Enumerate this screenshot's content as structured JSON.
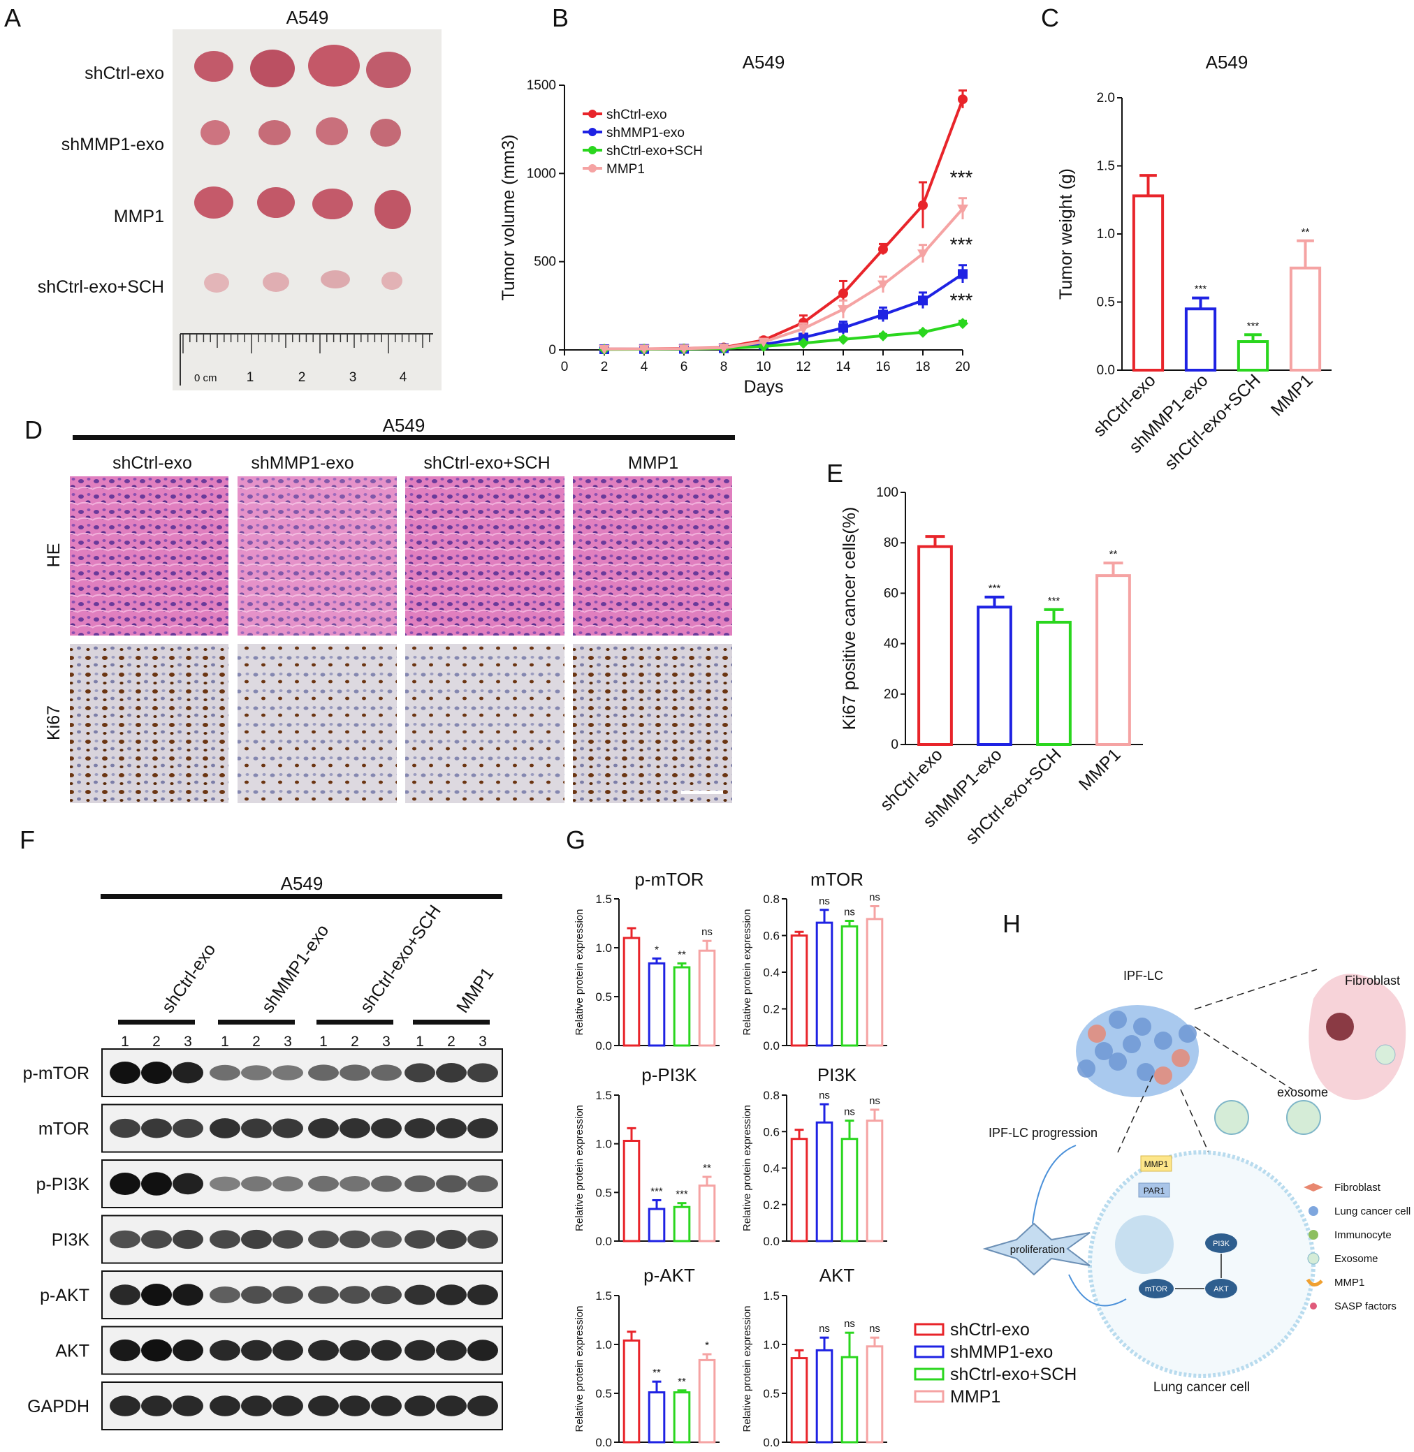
{
  "colors": {
    "red": "#e8242a",
    "blue": "#1e22e3",
    "green": "#2ad61e",
    "pink": "#f5a3a3"
  },
  "panels": {
    "A": "A",
    "B": "B",
    "C": "C",
    "D": "D",
    "E": "E",
    "F": "F",
    "G": "G",
    "H": "H"
  },
  "panelA": {
    "title": "A549",
    "rows": [
      "shCtrl-exo",
      "shMMP1-exo",
      "MMP1",
      "shCtrl-exo+SCH"
    ],
    "ruler": {
      "unit": "0 cm",
      "ticks": [
        "1",
        "2",
        "3",
        "4"
      ]
    }
  },
  "panelD": {
    "title": "A549",
    "columns": [
      "shCtrl-exo",
      "shMMP1-exo",
      "shCtrl-exo+SCH",
      "MMP1"
    ],
    "rows": [
      "HE",
      "Ki67"
    ]
  },
  "panelF": {
    "title": "A549",
    "groups": [
      "shCtrl-exo",
      "shMMP1-exo",
      "shCtrl-exo+SCH",
      "MMP1"
    ],
    "lanes": [
      "1",
      "2",
      "3"
    ],
    "bands": [
      "p-mTOR",
      "mTOR",
      "p-PI3K",
      "PI3K",
      "p-AKT",
      "AKT",
      "GAPDH"
    ]
  },
  "panelH": {
    "ipf": "IPF-LC",
    "fibroblast": "Fibroblast",
    "exosome": "exosome",
    "progression": "IPF-LC progression",
    "proliferation": "proliferation",
    "cell": "Lung cancer cell",
    "mmp1": "MMP1",
    "par1": "PAR1",
    "pi3k": "PI3K",
    "akt": "AKT",
    "mtor": "mTOR",
    "legend": [
      "Fibroblast",
      "Lung cancer cell",
      "Immunocyte",
      "Exosome",
      "MMP1",
      "SASP factors"
    ]
  },
  "chart_data": [
    {
      "id": "B",
      "type": "line",
      "title": "A549",
      "xlabel": "Days",
      "ylabel": "Tumor volume (mm3)",
      "xlim": [
        0,
        20
      ],
      "ylim": [
        0,
        1500
      ],
      "xticks": [
        "0",
        "2",
        "4",
        "6",
        "8",
        "10",
        "12",
        "14",
        "16",
        "18",
        "20"
      ],
      "yticks": [
        "0",
        "500",
        "1000",
        "1500"
      ],
      "x": [
        2,
        4,
        6,
        8,
        10,
        12,
        14,
        16,
        18,
        20
      ],
      "series": [
        {
          "name": "shCtrl-exo",
          "color": "#e8242a",
          "marker": "circle",
          "values": [
            5,
            6,
            8,
            14,
            55,
            155,
            320,
            570,
            820,
            1420
          ],
          "err": [
            5,
            5,
            5,
            8,
            15,
            40,
            70,
            30,
            130,
            50
          ]
        },
        {
          "name": "shMMP1-exo",
          "color": "#1e22e3",
          "marker": "square",
          "values": [
            4,
            5,
            6,
            10,
            30,
            70,
            125,
            200,
            280,
            430
          ],
          "err": [
            4,
            4,
            4,
            6,
            10,
            20,
            35,
            40,
            45,
            50
          ]
        },
        {
          "name": "shCtrl-exo+SCH",
          "color": "#2ad61e",
          "marker": "diamond",
          "values": [
            3,
            4,
            5,
            8,
            20,
            38,
            60,
            80,
            100,
            150
          ],
          "err": [
            3,
            3,
            3,
            4,
            6,
            8,
            10,
            10,
            10,
            15
          ]
        },
        {
          "name": "MMP1",
          "color": "#f5a3a3",
          "marker": "triangle",
          "values": [
            5,
            6,
            7,
            12,
            45,
            120,
            230,
            370,
            545,
            800
          ],
          "err": [
            5,
            5,
            5,
            8,
            12,
            30,
            50,
            45,
            50,
            60
          ]
        }
      ],
      "annotations": [
        "***",
        "***",
        "***"
      ]
    },
    {
      "id": "C",
      "type": "bar",
      "title": "A549",
      "ylabel": "Tumor weight (g)",
      "ylim": [
        0,
        2.0
      ],
      "yticks": [
        "0.0",
        "0.5",
        "1.0",
        "1.5",
        "2.0"
      ],
      "categories": [
        "shCtrl-exo",
        "shMMP1-exo",
        "shCtrl-exo+SCH",
        "MMP1"
      ],
      "values": [
        1.28,
        0.45,
        0.21,
        0.75
      ],
      "err": [
        0.15,
        0.08,
        0.05,
        0.2
      ],
      "stars": [
        "",
        "***",
        "***",
        "**"
      ]
    },
    {
      "id": "E",
      "type": "bar",
      "title": "",
      "ylabel": "Ki67 positive cancer cells(%)",
      "ylim": [
        0,
        100
      ],
      "yticks": [
        "0",
        "20",
        "40",
        "60",
        "80",
        "100"
      ],
      "categories": [
        "shCtrl-exo",
        "shMMP1-exo",
        "shCtrl-exo+SCH",
        "MMP1"
      ],
      "values": [
        78.5,
        54.5,
        48.5,
        67
      ],
      "err": [
        4,
        4,
        5,
        5
      ],
      "stars": [
        "",
        "***",
        "***",
        "**"
      ]
    },
    {
      "id": "G1",
      "type": "bar",
      "title": "p-mTOR",
      "ylabel": "Relative protein expression",
      "ylim": [
        0,
        1.5
      ],
      "yticks": [
        "0.0",
        "0.5",
        "1.0",
        "1.5"
      ],
      "categories": [
        "shCtrl-exo",
        "shMMP1-exo",
        "shCtrl-exo+SCH",
        "MMP1"
      ],
      "values": [
        1.1,
        0.84,
        0.8,
        0.97
      ],
      "err": [
        0.1,
        0.05,
        0.04,
        0.1
      ],
      "stars": [
        "",
        "*",
        "**",
        "ns"
      ]
    },
    {
      "id": "G2",
      "type": "bar",
      "title": "mTOR",
      "ylabel": "Relative protein expression",
      "ylim": [
        0,
        0.8
      ],
      "yticks": [
        "0.0",
        "0.2",
        "0.4",
        "0.6",
        "0.8"
      ],
      "categories": [
        "shCtrl-exo",
        "shMMP1-exo",
        "shCtrl-exo+SCH",
        "MMP1"
      ],
      "values": [
        0.6,
        0.67,
        0.65,
        0.69
      ],
      "err": [
        0.02,
        0.07,
        0.03,
        0.07
      ],
      "stars": [
        "",
        "ns",
        "ns",
        "ns"
      ]
    },
    {
      "id": "G3",
      "type": "bar",
      "title": "p-PI3K",
      "ylabel": "Relative protein expression",
      "ylim": [
        0,
        1.5
      ],
      "yticks": [
        "0.0",
        "0.5",
        "1.0",
        "1.5"
      ],
      "categories": [
        "shCtrl-exo",
        "shMMP1-exo",
        "shCtrl-exo+SCH",
        "MMP1"
      ],
      "values": [
        1.03,
        0.33,
        0.35,
        0.57
      ],
      "err": [
        0.13,
        0.09,
        0.04,
        0.09
      ],
      "stars": [
        "",
        "***",
        "***",
        "**"
      ]
    },
    {
      "id": "G4",
      "type": "bar",
      "title": "PI3K",
      "ylabel": "Relative protein expression",
      "ylim": [
        0,
        0.8
      ],
      "yticks": [
        "0.0",
        "0.2",
        "0.4",
        "0.6",
        "0.8"
      ],
      "categories": [
        "shCtrl-exo",
        "shMMP1-exo",
        "shCtrl-exo+SCH",
        "MMP1"
      ],
      "values": [
        0.56,
        0.65,
        0.56,
        0.66
      ],
      "err": [
        0.05,
        0.1,
        0.1,
        0.06
      ],
      "stars": [
        "",
        "ns",
        "ns",
        "ns"
      ]
    },
    {
      "id": "G5",
      "type": "bar",
      "title": "p-AKT",
      "ylabel": "Relative protein expression",
      "ylim": [
        0,
        1.5
      ],
      "yticks": [
        "0.0",
        "0.5",
        "1.0",
        "1.5"
      ],
      "categories": [
        "shCtrl-exo",
        "shMMP1-exo",
        "shCtrl-exo+SCH",
        "MMP1"
      ],
      "values": [
        1.04,
        0.51,
        0.51,
        0.84
      ],
      "err": [
        0.09,
        0.11,
        0.02,
        0.06
      ],
      "stars": [
        "",
        "**",
        "**",
        "*"
      ]
    },
    {
      "id": "G6",
      "type": "bar",
      "title": "AKT",
      "ylabel": "Relative protein expression",
      "ylim": [
        0,
        1.5
      ],
      "yticks": [
        "0.0",
        "0.5",
        "1.0",
        "1.5"
      ],
      "categories": [
        "shCtrl-exo",
        "shMMP1-exo",
        "shCtrl-exo+SCH",
        "MMP1"
      ],
      "values": [
        0.86,
        0.94,
        0.87,
        0.98
      ],
      "err": [
        0.08,
        0.13,
        0.25,
        0.09
      ],
      "stars": [
        "",
        "ns",
        "ns",
        "ns"
      ]
    }
  ],
  "legendG": [
    "shCtrl-exo",
    "shMMP1-exo",
    "shCtrl-exo+SCH",
    "MMP1"
  ]
}
